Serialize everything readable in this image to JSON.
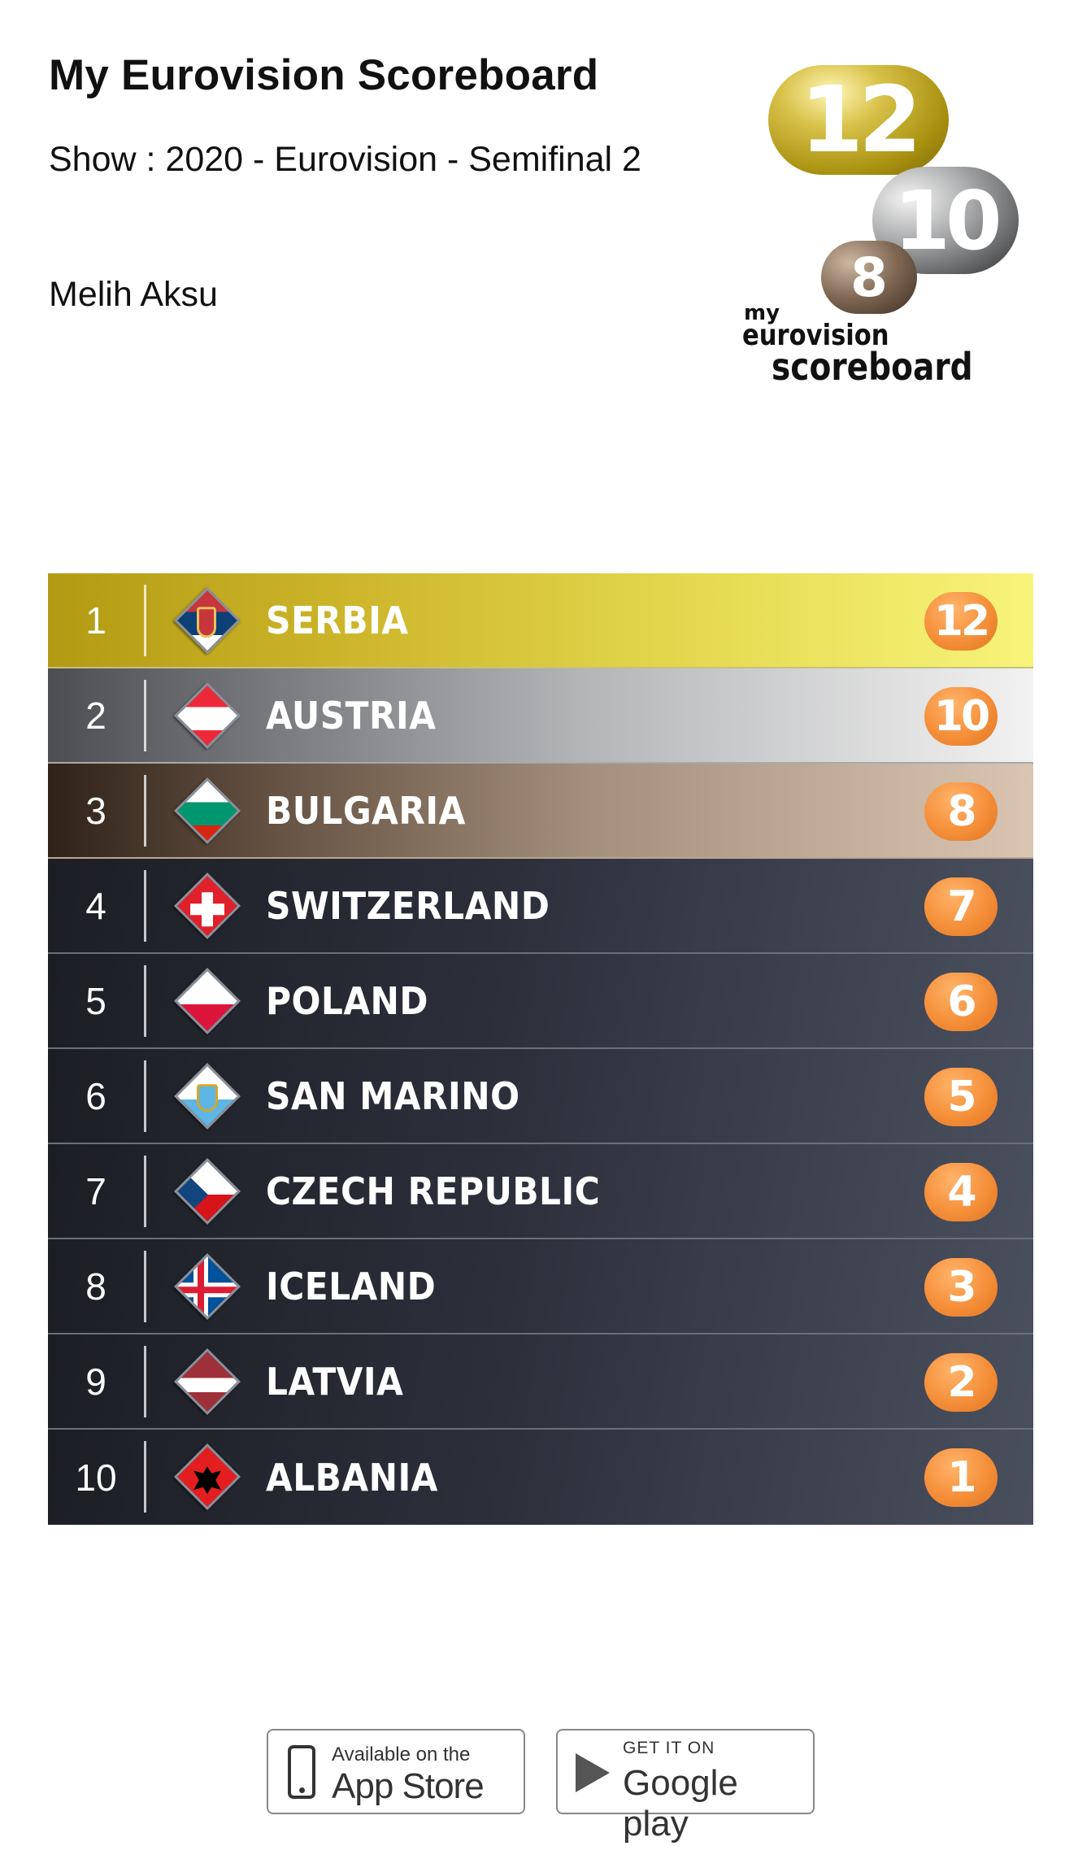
{
  "header": {
    "title": "My Eurovision Scoreboard",
    "show": "Show : 2020 - Eurovision - Semifinal 2",
    "user": "Melih Aksu"
  },
  "logo": {
    "p12": "12",
    "p10": "10",
    "p8": "8",
    "line1": "my",
    "line2": "eurovision",
    "line3": "scoreboard"
  },
  "scoreboard": [
    {
      "rank": "1",
      "country": "SERBIA",
      "points": "12",
      "flag_icon": "serbia-flag-icon"
    },
    {
      "rank": "2",
      "country": "AUSTRIA",
      "points": "10",
      "flag_icon": "austria-flag-icon"
    },
    {
      "rank": "3",
      "country": "BULGARIA",
      "points": "8",
      "flag_icon": "bulgaria-flag-icon"
    },
    {
      "rank": "4",
      "country": "SWITZERLAND",
      "points": "7",
      "flag_icon": "switzerland-flag-icon"
    },
    {
      "rank": "5",
      "country": "POLAND",
      "points": "6",
      "flag_icon": "poland-flag-icon"
    },
    {
      "rank": "6",
      "country": "SAN MARINO",
      "points": "5",
      "flag_icon": "san-marino-flag-icon"
    },
    {
      "rank": "7",
      "country": "CZECH REPUBLIC",
      "points": "4",
      "flag_icon": "czech-republic-flag-icon"
    },
    {
      "rank": "8",
      "country": "ICELAND",
      "points": "3",
      "flag_icon": "iceland-flag-icon"
    },
    {
      "rank": "9",
      "country": "LATVIA",
      "points": "2",
      "flag_icon": "latvia-flag-icon"
    },
    {
      "rank": "10",
      "country": "ALBANIA",
      "points": "1",
      "flag_icon": "albania-flag-icon"
    }
  ],
  "badges": {
    "appstore_small": "Available on the",
    "appstore_big": "App Store",
    "gplay_small": "GET IT ON",
    "gplay_big": "Google play"
  },
  "colors": {
    "points_orange": "#f58f3a",
    "board_dark": "#2c2f3a",
    "gold": "#cdb52a"
  }
}
